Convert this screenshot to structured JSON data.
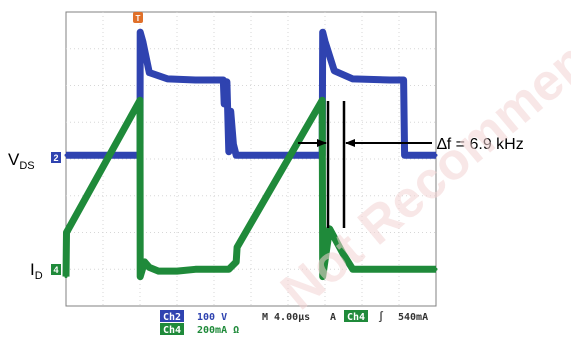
{
  "chart_data": {
    "type": "line",
    "title": "",
    "grid": true,
    "x_unit": "µs",
    "series": [
      {
        "name": "VDS",
        "color": "#2f43b0",
        "x": [
          0,
          2.0,
          8.0,
          8.02,
          8.3,
          9.0,
          11.0,
          14.0,
          17.0,
          17.1,
          17.4,
          17.6,
          17.8,
          18.1,
          18.4,
          27.7,
          27.75,
          28.0,
          29.0,
          31.0,
          35.0,
          36.5,
          36.6,
          40.0
        ],
        "values": [
          0.1,
          0.1,
          0.1,
          3.45,
          3.2,
          2.35,
          2.18,
          2.15,
          2.15,
          1.5,
          2.1,
          0.2,
          1.3,
          0.4,
          0.1,
          0.1,
          3.45,
          3.2,
          2.4,
          2.18,
          2.15,
          2.15,
          0.1,
          0.1
        ]
      },
      {
        "name": "ID",
        "color": "#1f8a3a",
        "x": [
          0,
          0.05,
          8.0,
          8.02,
          8.5,
          9.0,
          10.0,
          12.0,
          14.0,
          17.6,
          18.4,
          18.5,
          27.7,
          27.75,
          28.5,
          30.0,
          31.0,
          35.0,
          40.0
        ],
        "values": [
          -3.2,
          -2.0,
          1.6,
          -3.2,
          -2.8,
          -2.95,
          -3.05,
          -3.05,
          -3.0,
          -3.0,
          -2.8,
          -2.4,
          1.6,
          -3.2,
          -1.9,
          -2.6,
          -3.0,
          -3.0,
          -3.0
        ]
      }
    ],
    "ylim": [
      -4,
      4
    ],
    "xlim": [
      0,
      40
    ],
    "labels": {
      "vds_main": "V",
      "vds_sub": "DS",
      "id_main": "I",
      "id_sub": "D",
      "delta_f": "∆f = 6.9 kHz",
      "ch2_marker": "2",
      "ch4_marker": "4",
      "trigger_marker": "T"
    },
    "status_bar": {
      "ch2": "Ch2",
      "ch2_scale": "100 V",
      "ch4": "Ch4",
      "ch4_scale": "200mA Ω",
      "timebase": "M 4.00µs",
      "trig_mode": "A",
      "trig_source": "Ch4",
      "trig_slope": "∫",
      "trig_level": "540mA"
    },
    "watermark": "Not Recommended"
  }
}
